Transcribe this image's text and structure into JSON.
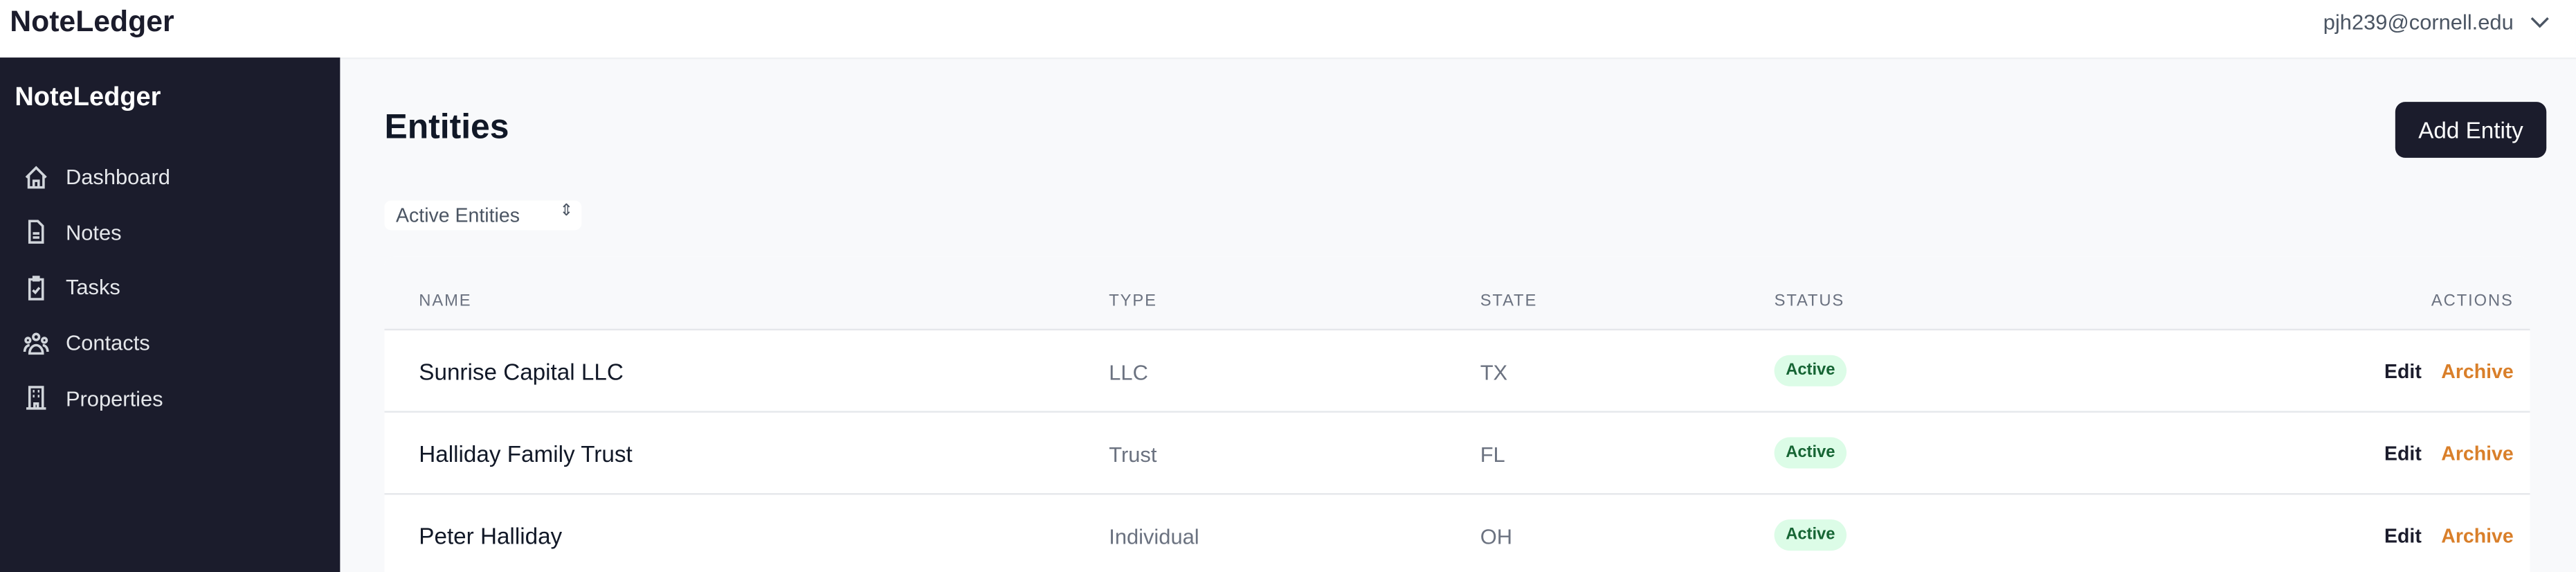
{
  "app": {
    "brand": "NoteLedger",
    "user_email": "pjh239@cornell.edu"
  },
  "sidebar": {
    "brand": "NoteLedger",
    "items": [
      {
        "label": "Dashboard",
        "icon": "home-icon"
      },
      {
        "label": "Notes",
        "icon": "document-icon"
      },
      {
        "label": "Tasks",
        "icon": "clipboard-check-icon"
      },
      {
        "label": "Contacts",
        "icon": "users-icon"
      },
      {
        "label": "Properties",
        "icon": "building-icon"
      }
    ]
  },
  "main": {
    "title": "Entities",
    "add_button": "Add Entity",
    "filter": {
      "selected": "Active Entities"
    },
    "table": {
      "headers": [
        "NAME",
        "TYPE",
        "STATE",
        "STATUS",
        "ACTIONS"
      ],
      "rows": [
        {
          "name": "Sunrise Capital LLC",
          "type": "LLC",
          "state": "TX",
          "status": "Active",
          "edit": "Edit",
          "archive": "Archive"
        },
        {
          "name": "Halliday Family Trust",
          "type": "Trust",
          "state": "FL",
          "status": "Active",
          "edit": "Edit",
          "archive": "Archive"
        },
        {
          "name": "Peter Halliday",
          "type": "Individual",
          "state": "OH",
          "status": "Active",
          "edit": "Edit",
          "archive": "Archive"
        }
      ]
    }
  },
  "colors": {
    "sidebar": "#1b1c2c",
    "accent_archive": "#d97f2a",
    "status_active_bg": "#dcfce7",
    "status_active_text": "#166534"
  }
}
